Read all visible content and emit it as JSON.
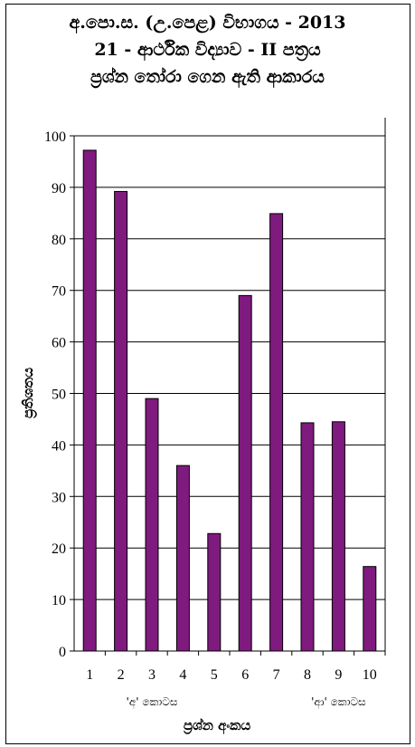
{
  "chart_data": {
    "type": "bar",
    "title_lines": [
      "අ.පො.ස. (උ.පෙළ) විභාගය - 2013",
      "21 - ආර්ථික විද්‍යාව - II පත්‍රය",
      "ප්‍රශ්න තෝරා ගෙන ඇති ආකාරය"
    ],
    "categories": [
      "1",
      "2",
      "3",
      "4",
      "5",
      "6",
      "7",
      "8",
      "9",
      "10"
    ],
    "values": [
      97.2,
      89.2,
      49,
      36,
      22.8,
      69,
      84.9,
      44.3,
      44.5,
      16.4
    ],
    "ylabel": "ප්‍රතිශතය",
    "xlabel": "ප්‍රශ්න අංකය",
    "y_ticks": [
      "0",
      "10",
      "20",
      "30",
      "40",
      "50",
      "60",
      "70",
      "80",
      "90",
      "100"
    ],
    "ylim": [
      0,
      100
    ],
    "grid": true,
    "bar_color": "#7f1a7f",
    "section_labels": [
      {
        "text": "'අ' කොටස",
        "from_category": "1",
        "to_category": "5"
      },
      {
        "text": "'ආ' කොටස",
        "from_category": "8",
        "to_category": "10"
      }
    ]
  }
}
